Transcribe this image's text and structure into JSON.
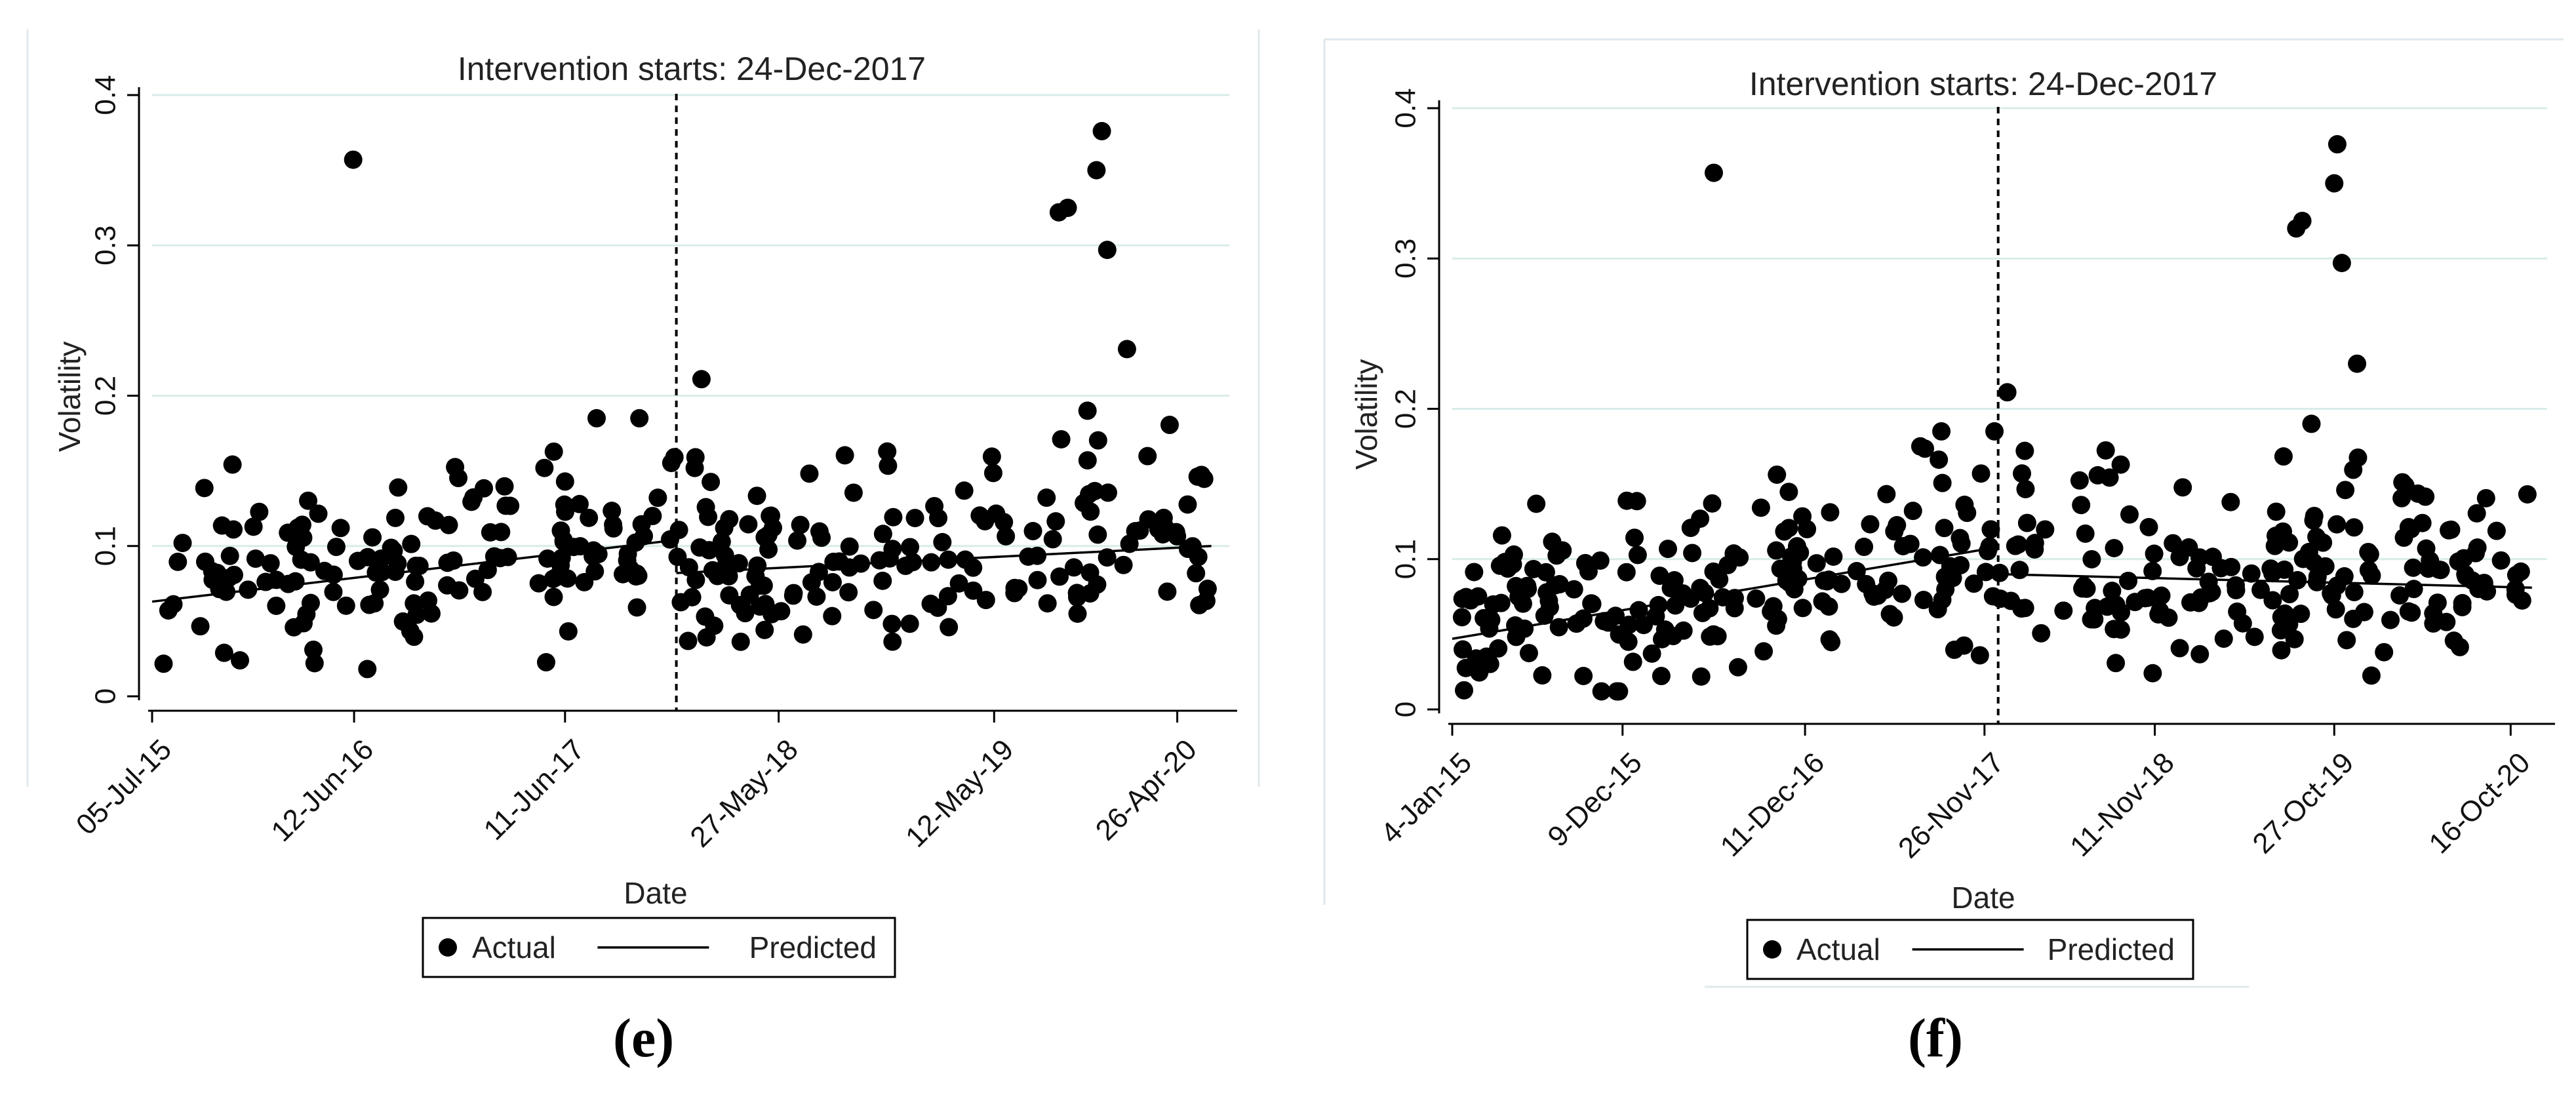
{
  "chart_data": [
    {
      "panel": "(e)",
      "type": "scatter",
      "title": "Intervention starts: 24-Dec-2017",
      "xlabel": "Date",
      "ylabel": "Volatility",
      "ylim": [
        0,
        0.4
      ],
      "yticks": [
        0,
        0.1,
        0.2,
        0.3,
        0.4
      ],
      "ytick_labels": [
        "0",
        "0.1",
        "0.2",
        "0.3",
        "0.4"
      ],
      "xlim": [
        0,
        60
      ],
      "xticks": [
        0,
        11.25,
        23,
        34.9,
        46.9,
        57.1
      ],
      "xtick_labels": [
        "05-Jul-15",
        "12-Jun-16",
        "11-Jun-17",
        "27-May-18",
        "12-May-19",
        "26-Apr-20"
      ],
      "intervention_x": 29.2,
      "legend": {
        "actual": "Actual",
        "predicted": "Predicted",
        "placement": "bottom-center"
      },
      "predicted_pre": [
        [
          0,
          0.063
        ],
        [
          29.2,
          0.104
        ]
      ],
      "predicted_post": [
        [
          29.2,
          0.082
        ],
        [
          59,
          0.1
        ]
      ],
      "outliers": [
        [
          11.2,
          0.357
        ],
        [
          50.5,
          0.322
        ],
        [
          51.0,
          0.325
        ],
        [
          52.6,
          0.35
        ],
        [
          52.9,
          0.376
        ],
        [
          53.2,
          0.297
        ],
        [
          54.3,
          0.231
        ],
        [
          30.6,
          0.211
        ],
        [
          52.1,
          0.19
        ]
      ],
      "actual_seed": 11
    },
    {
      "panel": "(f)",
      "type": "scatter",
      "title": "Intervention starts: 24-Dec-2017",
      "xlabel": "Date",
      "ylabel": "Volatility",
      "ylim": [
        0,
        0.4
      ],
      "yticks": [
        0,
        0.1,
        0.2,
        0.3,
        0.4
      ],
      "ytick_labels": [
        "0",
        "0.1",
        "0.2",
        "0.3",
        "0.4"
      ],
      "xlim": [
        0,
        72
      ],
      "xticks": [
        0,
        11.2,
        23.2,
        35.0,
        46.2,
        58.0,
        69.6
      ],
      "xtick_labels": [
        "4-Jan-15",
        "9-Dec-15",
        "11-Dec-16",
        "26-Nov-17",
        "11-Nov-18",
        "27-Oct-19",
        "16-Oct-20"
      ],
      "intervention_x": 35.9,
      "legend": {
        "actual": "Actual",
        "predicted": "Predicted",
        "placement": "bottom-center"
      },
      "predicted_pre": [
        [
          0,
          0.047
        ],
        [
          35.9,
          0.108
        ]
      ],
      "predicted_post": [
        [
          35.9,
          0.09
        ],
        [
          71,
          0.081
        ]
      ],
      "outliers": [
        [
          17.2,
          0.357
        ],
        [
          55.5,
          0.32
        ],
        [
          55.9,
          0.325
        ],
        [
          58.0,
          0.35
        ],
        [
          58.2,
          0.376
        ],
        [
          58.5,
          0.297
        ],
        [
          59.5,
          0.23
        ],
        [
          36.5,
          0.211
        ],
        [
          56.5,
          0.19
        ]
      ],
      "actual_seed": 23
    }
  ],
  "labels": {
    "panel_e": "(e)",
    "panel_f": "(f)"
  }
}
